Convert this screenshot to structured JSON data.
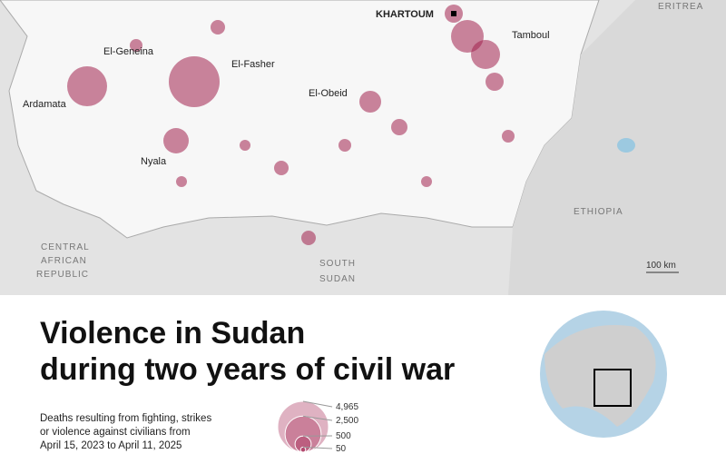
{
  "map": {
    "labels": {
      "eritrea": "ERITREA",
      "khartoum": "KHARTOUM",
      "tamboul": "Tamboul",
      "el_geneina": "El-Geneina",
      "el_fasher": "El-Fasher",
      "ardamata": "Ardamata",
      "el_obeid": "El-Obeid",
      "nyala": "Nyala",
      "ethiopia": "ETHIOPIA",
      "car": [
        "CENTRAL",
        "AFRICAN",
        "REPUBLIC"
      ],
      "south_sudan": [
        "SOUTH",
        "SUDAN"
      ],
      "scale": "100 km"
    }
  },
  "title": [
    "Violence in Sudan",
    "during two years of civil war"
  ],
  "legend": {
    "description": [
      "Deaths resulting from fighting, strikes",
      "or violence against civilians from",
      "April 15, 2023 to April 11, 2025"
    ],
    "items": [
      {
        "value": 4965,
        "label": "4,965"
      },
      {
        "value": 2500,
        "label": "2,500"
      },
      {
        "value": 500,
        "label": "500"
      },
      {
        "value": 50,
        "label": "50"
      }
    ]
  }
}
